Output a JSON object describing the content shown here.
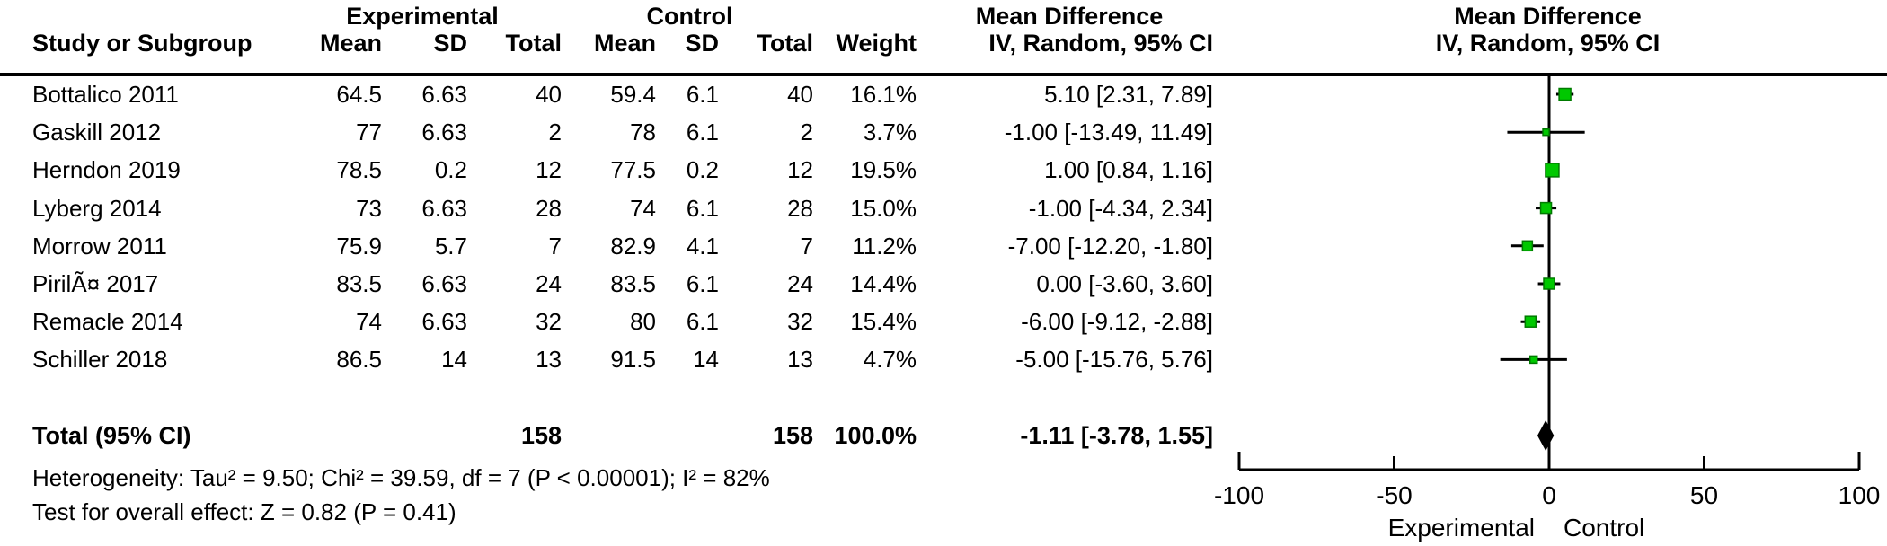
{
  "table": {
    "group_headers": {
      "experimental": "Experimental",
      "control": "Control",
      "mean_difference": "Mean Difference"
    },
    "columns": {
      "study": "Study or Subgroup",
      "mean": "Mean",
      "sd": "SD",
      "total": "Total",
      "weight": "Weight",
      "ci": "IV, Random, 95% CI"
    },
    "rows": [
      {
        "study": "Bottalico 2011",
        "exp_mean": "64.5",
        "exp_sd": "6.63",
        "exp_total": "40",
        "ctl_mean": "59.4",
        "ctl_sd": "6.1",
        "ctl_total": "40",
        "weight": "16.1%",
        "ci": "5.10 [2.31, 7.89]"
      },
      {
        "study": "Gaskill 2012",
        "exp_mean": "77",
        "exp_sd": "6.63",
        "exp_total": "2",
        "ctl_mean": "78",
        "ctl_sd": "6.1",
        "ctl_total": "2",
        "weight": "3.7%",
        "ci": "-1.00 [-13.49, 11.49]"
      },
      {
        "study": "Herndon 2019",
        "exp_mean": "78.5",
        "exp_sd": "0.2",
        "exp_total": "12",
        "ctl_mean": "77.5",
        "ctl_sd": "0.2",
        "ctl_total": "12",
        "weight": "19.5%",
        "ci": "1.00 [0.84, 1.16]"
      },
      {
        "study": "Lyberg 2014",
        "exp_mean": "73",
        "exp_sd": "6.63",
        "exp_total": "28",
        "ctl_mean": "74",
        "ctl_sd": "6.1",
        "ctl_total": "28",
        "weight": "15.0%",
        "ci": "-1.00 [-4.34, 2.34]"
      },
      {
        "study": "Morrow 2011",
        "exp_mean": "75.9",
        "exp_sd": "5.7",
        "exp_total": "7",
        "ctl_mean": "82.9",
        "ctl_sd": "4.1",
        "ctl_total": "7",
        "weight": "11.2%",
        "ci": "-7.00 [-12.20, -1.80]"
      },
      {
        "study": "PirilÃ¤ 2017",
        "exp_mean": "83.5",
        "exp_sd": "6.63",
        "exp_total": "24",
        "ctl_mean": "83.5",
        "ctl_sd": "6.1",
        "ctl_total": "24",
        "weight": "14.4%",
        "ci": "0.00 [-3.60, 3.60]"
      },
      {
        "study": "Remacle 2014",
        "exp_mean": "74",
        "exp_sd": "6.63",
        "exp_total": "32",
        "ctl_mean": "80",
        "ctl_sd": "6.1",
        "ctl_total": "32",
        "weight": "15.4%",
        "ci": "-6.00 [-9.12, -2.88]"
      },
      {
        "study": "Schiller 2018",
        "exp_mean": "86.5",
        "exp_sd": "14",
        "exp_total": "13",
        "ctl_mean": "91.5",
        "ctl_sd": "14",
        "ctl_total": "13",
        "weight": "4.7%",
        "ci": "-5.00 [-15.76, 5.76]"
      }
    ],
    "total_row": {
      "label": "Total (95% CI)",
      "exp_total": "158",
      "ctl_total": "158",
      "weight": "100.0%",
      "ci": "-1.11 [-3.78, 1.55]"
    },
    "footer": {
      "heterogeneity": "Heterogeneity: Tau² = 9.50; Chi² = 39.59, df = 7 (P < 0.00001); I² = 82%",
      "overall_effect": "Test for overall effect: Z = 0.82 (P = 0.41)"
    }
  },
  "plot": {
    "title": "Mean Difference",
    "subtitle": "IV, Random, 95% CI"
  },
  "chart_data": {
    "type": "forest",
    "title": "Mean Difference",
    "subtitle": "IV, Random, 95% CI",
    "xlim": [
      -100,
      100
    ],
    "x_ticks": [
      -100,
      -50,
      0,
      50,
      100
    ],
    "axis_caption_left": "Experimental",
    "axis_caption_right": "Control",
    "studies": [
      {
        "name": "Bottalico 2011",
        "md": 5.1,
        "ci_low": 2.31,
        "ci_high": 7.89,
        "weight_pct": 16.1,
        "marker_size": 13
      },
      {
        "name": "Gaskill 2012",
        "md": -1.0,
        "ci_low": -13.49,
        "ci_high": 11.49,
        "weight_pct": 3.7,
        "marker_size": 7
      },
      {
        "name": "Herndon 2019",
        "md": 1.0,
        "ci_low": 0.84,
        "ci_high": 1.16,
        "weight_pct": 19.5,
        "marker_size": 15
      },
      {
        "name": "Lyberg 2014",
        "md": -1.0,
        "ci_low": -4.34,
        "ci_high": 2.34,
        "weight_pct": 15.0,
        "marker_size": 12
      },
      {
        "name": "Morrow 2011",
        "md": -7.0,
        "ci_low": -12.2,
        "ci_high": -1.8,
        "weight_pct": 11.2,
        "marker_size": 11
      },
      {
        "name": "PirilÃ¤ 2017",
        "md": 0.0,
        "ci_low": -3.6,
        "ci_high": 3.6,
        "weight_pct": 14.4,
        "marker_size": 12
      },
      {
        "name": "Remacle 2014",
        "md": -6.0,
        "ci_low": -9.12,
        "ci_high": -2.88,
        "weight_pct": 15.4,
        "marker_size": 12
      },
      {
        "name": "Schiller 2018",
        "md": -5.0,
        "ci_low": -15.76,
        "ci_high": 5.76,
        "weight_pct": 4.7,
        "marker_size": 8
      }
    ],
    "total": {
      "md": -1.11,
      "ci_low": -3.78,
      "ci_high": 1.55
    },
    "colors": {
      "marker_fill": "#00c800",
      "marker_stroke": "#007a00",
      "diamond": "#000000",
      "line": "#000000"
    }
  }
}
